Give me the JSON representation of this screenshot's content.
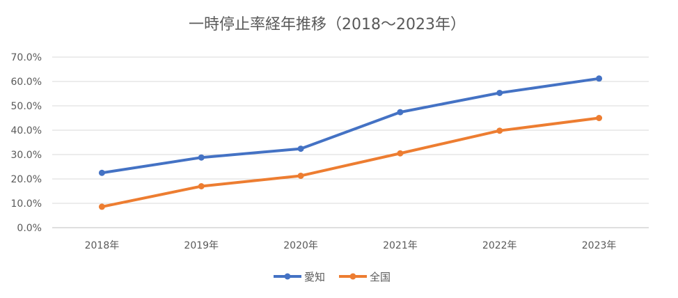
{
  "chart_data": {
    "type": "line",
    "title": "一時停止率経年推移（2018～2023年）",
    "categories": [
      "2018年",
      "2019年",
      "2020年",
      "2021年",
      "2022年",
      "2023年"
    ],
    "series": [
      {
        "name": "愛知",
        "values": [
          22.5,
          28.8,
          32.4,
          47.4,
          55.3,
          61.2
        ],
        "color": "#4472c4"
      },
      {
        "name": "全国",
        "values": [
          8.6,
          17.0,
          21.3,
          30.5,
          39.8,
          45.0
        ],
        "color": "#ed7d31"
      }
    ],
    "ylim": [
      0,
      70
    ],
    "yticks": [
      "0.0%",
      "10.0%",
      "20.0%",
      "30.0%",
      "40.0%",
      "50.0%",
      "60.0%",
      "70.0%"
    ],
    "grid": true,
    "legend": "bottom"
  }
}
